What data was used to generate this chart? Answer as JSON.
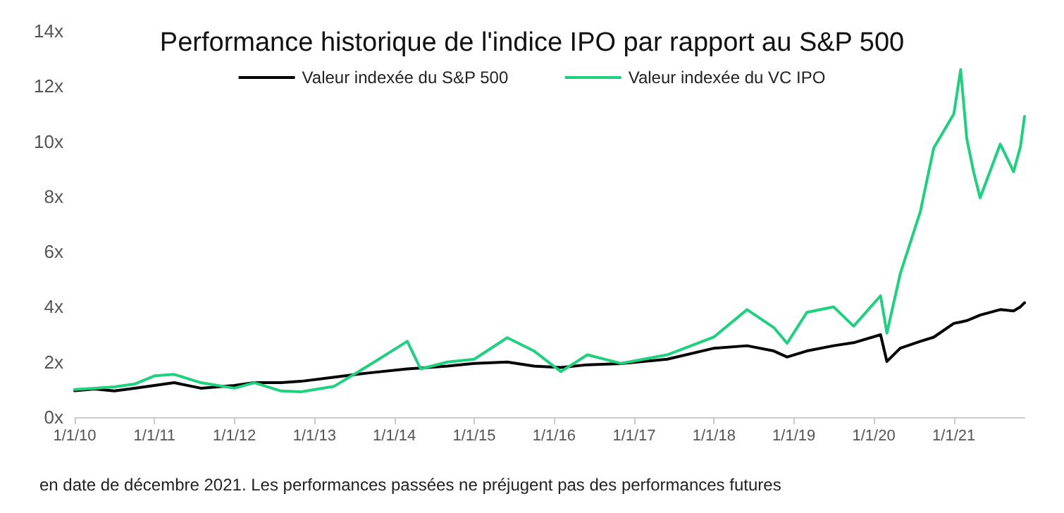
{
  "chart_data": {
    "type": "line",
    "title": "Performance historique de l'indice IPO par rapport au S&P 500",
    "x": [
      "2010-01",
      "2010-04",
      "2010-07",
      "2010-10",
      "2011-01",
      "2011-04",
      "2011-08",
      "2012-01",
      "2012-04",
      "2012-08",
      "2012-11",
      "2013-04",
      "2013-09",
      "2014-03",
      "2014-05",
      "2014-09",
      "2015-01",
      "2015-06",
      "2015-10",
      "2016-02",
      "2016-06",
      "2016-11",
      "2017-06",
      "2018-01",
      "2018-06",
      "2018-10",
      "2018-12",
      "2019-03",
      "2019-07",
      "2019-10",
      "2020-02",
      "2020-03",
      "2020-05",
      "2020-08",
      "2020-10",
      "2021-01",
      "2021-02",
      "2021-03",
      "2021-04",
      "2021-05",
      "2021-08",
      "2021-10",
      "2021-11",
      "2021-11-20"
    ],
    "series": [
      {
        "name": "Valeur indexée du S&P 500",
        "color": "#000000",
        "values": [
          0.96,
          1.02,
          0.95,
          1.05,
          1.15,
          1.25,
          1.05,
          1.15,
          1.25,
          1.25,
          1.3,
          1.45,
          1.6,
          1.75,
          1.78,
          1.85,
          1.95,
          2.0,
          1.85,
          1.8,
          1.9,
          1.94,
          2.1,
          2.5,
          2.59,
          2.4,
          2.18,
          2.4,
          2.59,
          2.7,
          2.99,
          2.02,
          2.5,
          2.75,
          2.9,
          3.4,
          3.45,
          3.5,
          3.6,
          3.7,
          3.9,
          3.85,
          4.0,
          4.15
        ]
      },
      {
        "name": "Valeur indexée du VC IPO",
        "color": "#1fd17f",
        "values": [
          1.0,
          1.05,
          1.1,
          1.2,
          1.5,
          1.55,
          1.25,
          1.05,
          1.25,
          0.95,
          0.92,
          1.12,
          1.85,
          2.75,
          1.75,
          2.0,
          2.1,
          2.88,
          2.4,
          1.65,
          2.26,
          1.95,
          2.26,
          2.91,
          3.9,
          3.25,
          2.68,
          3.8,
          4.0,
          3.3,
          4.4,
          3.05,
          5.2,
          7.46,
          9.76,
          11.0,
          12.6,
          10.1,
          8.9,
          7.95,
          9.9,
          8.9,
          9.8,
          10.9
        ]
      }
    ],
    "xlim": [
      "2010-01-01",
      "2021-11-20"
    ],
    "xticks": [
      {
        "value": "2010-01-01",
        "label": "1/1/10"
      },
      {
        "value": "2011-01-01",
        "label": "1/1/11"
      },
      {
        "value": "2012-01-01",
        "label": "1/1/12"
      },
      {
        "value": "2013-01-01",
        "label": "1/1/13"
      },
      {
        "value": "2014-01-01",
        "label": "1/1/14"
      },
      {
        "value": "2015-01-01",
        "label": "1/1/15"
      },
      {
        "value": "2016-01-01",
        "label": "1/1/16"
      },
      {
        "value": "2017-01-01",
        "label": "1/1/17"
      },
      {
        "value": "2018-01-01",
        "label": "1/1/18"
      },
      {
        "value": "2019-01-01",
        "label": "1/1/19"
      },
      {
        "value": "2020-01-01",
        "label": "1/1/20"
      },
      {
        "value": "2021-01-01",
        "label": "1/1/21"
      }
    ],
    "ylim": [
      0,
      14
    ],
    "yticks": [
      {
        "value": 0,
        "label": "0x"
      },
      {
        "value": 2,
        "label": "2x"
      },
      {
        "value": 4,
        "label": "4x"
      },
      {
        "value": 6,
        "label": "6x"
      },
      {
        "value": 8,
        "label": "8x"
      },
      {
        "value": 10,
        "label": "10x"
      },
      {
        "value": 12,
        "label": "12x"
      },
      {
        "value": 14,
        "label": "14x"
      }
    ],
    "grid": false,
    "legend": "top",
    "marker": "none",
    "line_style": "solid",
    "annotations": [
      "en date de décembre 2021. Les performances passées ne préjugent pas des performances futures"
    ]
  }
}
